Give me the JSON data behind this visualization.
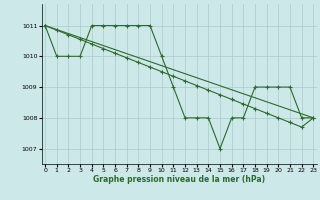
{
  "line1_x": [
    0,
    1,
    2,
    3,
    4,
    5,
    6,
    7,
    8,
    9,
    10,
    11,
    12,
    13,
    14,
    15,
    16,
    17,
    18,
    19,
    20,
    21,
    22,
    23
  ],
  "line1_y": [
    1011,
    1010,
    1010,
    1010,
    1011,
    1011,
    1011,
    1011,
    1011,
    1011,
    1010,
    1009,
    1008,
    1008,
    1008,
    1007,
    1008,
    1008,
    1009,
    1009,
    1009,
    1009,
    1008,
    1008
  ],
  "line2_x": [
    0,
    1,
    2,
    3,
    4,
    5,
    6,
    7,
    8,
    9,
    10,
    11,
    12,
    13,
    14,
    15,
    16,
    17,
    18,
    19,
    20,
    21,
    22,
    23
  ],
  "line2_y": [
    1011,
    1010.85,
    1010.7,
    1010.55,
    1010.4,
    1010.25,
    1010.1,
    1009.95,
    1009.8,
    1009.65,
    1009.5,
    1009.35,
    1009.2,
    1009.05,
    1008.9,
    1008.75,
    1008.6,
    1008.45,
    1008.3,
    1008.15,
    1008.0,
    1007.85,
    1007.7,
    1008
  ],
  "line3_x": [
    0,
    23
  ],
  "line3_y": [
    1011,
    1008
  ],
  "line_color": "#2d6a2d",
  "bg_color": "#cce8e8",
  "grid_color": "#aacccc",
  "xlabel": "Graphe pression niveau de la mer (hPa)",
  "yticks": [
    1007,
    1008,
    1009,
    1010,
    1011
  ],
  "xtick_labels": [
    "0",
    "1",
    "2",
    "3",
    "4",
    "5",
    "6",
    "7",
    "8",
    "9",
    "10",
    "11",
    "12",
    "13",
    "14",
    "15",
    "16",
    "17",
    "18",
    "19",
    "20",
    "21",
    "22",
    "23"
  ],
  "xticks": [
    0,
    1,
    2,
    3,
    4,
    5,
    6,
    7,
    8,
    9,
    10,
    11,
    12,
    13,
    14,
    15,
    16,
    17,
    18,
    19,
    20,
    21,
    22,
    23
  ],
  "ylim": [
    1006.5,
    1011.7
  ],
  "xlim": [
    -0.3,
    23.3
  ]
}
